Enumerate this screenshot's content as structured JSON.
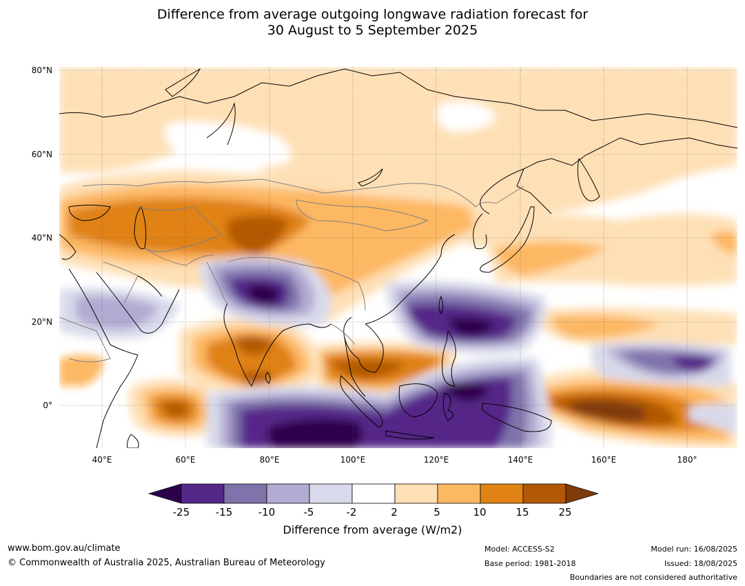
{
  "title": {
    "line1": "Difference from average outgoing longwave radiation forecast for",
    "line2": "30 August to 5 September 2025"
  },
  "map": {
    "lat_labels": [
      "80°N",
      "60°N",
      "40°N",
      "20°N",
      "0°"
    ],
    "lon_labels": [
      "40°E",
      "60°E",
      "80°E",
      "100°E",
      "120°E",
      "140°E",
      "160°E",
      "180°"
    ],
    "extent": {
      "lon_min": 30,
      "lon_max": 192,
      "lat_min": -10,
      "lat_max": 81
    },
    "gridlines": true
  },
  "colorbar": {
    "ticks": [
      "-25",
      "-15",
      "-10",
      "-5",
      "-2",
      "2",
      "5",
      "10",
      "15",
      "25"
    ],
    "colors": [
      "#2d004b",
      "#542788",
      "#8073ac",
      "#b2abd2",
      "#d8daeb",
      "#ffffff",
      "#fee0b6",
      "#fdb863",
      "#e08214",
      "#b35806",
      "#7f3b08"
    ],
    "label": "Difference from average (W/m2)"
  },
  "footer": {
    "website": "www.bom.gov.au/climate",
    "copyright": "© Commonwealth of Australia 2025, Australian Bureau of Meteorology",
    "model": "Model: ACCESS-S2",
    "base_period": "Base period: 1981-2018",
    "model_run": "Model run: 16/08/2025",
    "issued": "Issued: 18/08/2025",
    "boundaries_note": "Boundaries are not considered authoritative"
  }
}
